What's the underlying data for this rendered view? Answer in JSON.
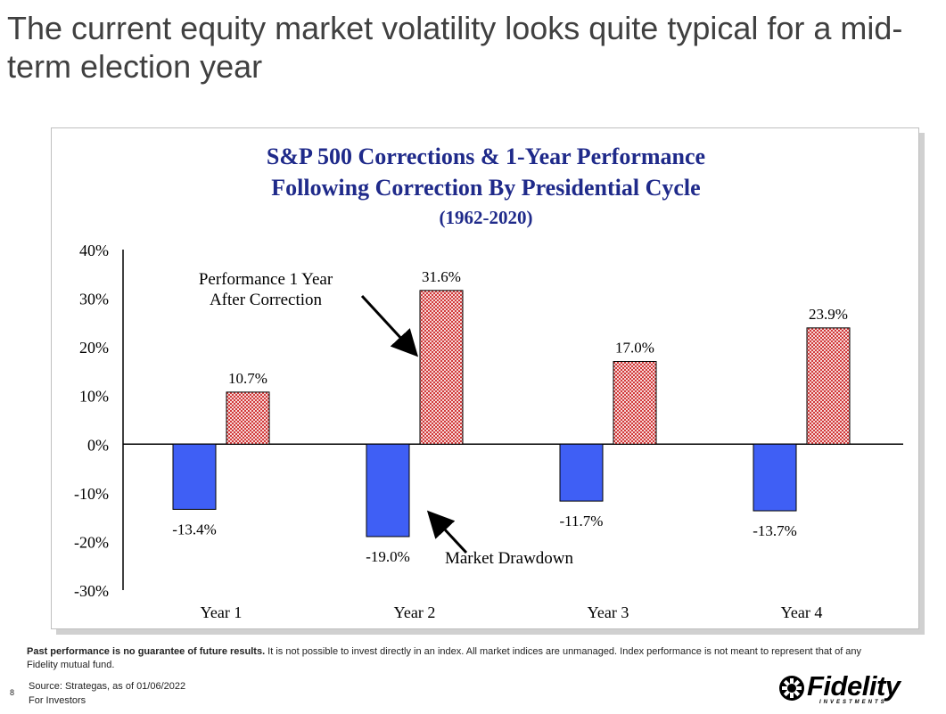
{
  "slide": {
    "title": "The current equity market volatility looks quite typical for a mid-term election year"
  },
  "footer": {
    "disclaimer_bold": "Past performance is no guarantee of future results.",
    "disclaimer_rest": " It is not possible to invest directly in an index. All market indices are unmanaged. Index performance is not meant to represent that of any Fidelity mutual fund.",
    "source": "Source: Strategas, as of 01/06/2022",
    "page_number": "8",
    "audience": "For Investors"
  },
  "logo": {
    "name": "Fidelity",
    "tagline": "INVESTMENTS"
  },
  "colors": {
    "drawdown": "#3f5ff5",
    "performance": "#d98080",
    "title_navy": "#1f2a8a"
  },
  "chart_data": {
    "type": "bar",
    "title_lines": [
      "S&P 500 Corrections & 1-Year Performance",
      "Following Correction By Presidential Cycle",
      "(1962-2020)"
    ],
    "categories": [
      "Year 1",
      "Year 2",
      "Year 3",
      "Year 4"
    ],
    "series": [
      {
        "key": "drawdown",
        "values": [
          -13.4,
          -19.0,
          -11.7,
          -13.7
        ]
      },
      {
        "key": "performance",
        "values": [
          10.7,
          31.6,
          17.0,
          23.9
        ]
      }
    ],
    "data_labels": {
      "drawdown": [
        "-13.4%",
        "-19.0%",
        "-11.7%",
        "-13.7%"
      ],
      "performance": [
        "10.7%",
        "31.6%",
        "17.0%",
        "23.9%"
      ]
    },
    "y_ticks": [
      40,
      30,
      20,
      10,
      0,
      -10,
      -20,
      -30
    ],
    "y_tick_labels": [
      "40%",
      "30%",
      "20%",
      "10%",
      "0%",
      "-10%",
      "-20%",
      "-30%"
    ],
    "ylim": [
      -30,
      40
    ],
    "annotations": [
      {
        "target": "performance",
        "category": "Year 2",
        "lines": [
          "Performance 1 Year",
          "After Correction"
        ]
      },
      {
        "target": "drawdown",
        "category": "Year 2",
        "lines": [
          "Market Drawdown"
        ]
      }
    ],
    "grid": false,
    "legend": "none"
  }
}
